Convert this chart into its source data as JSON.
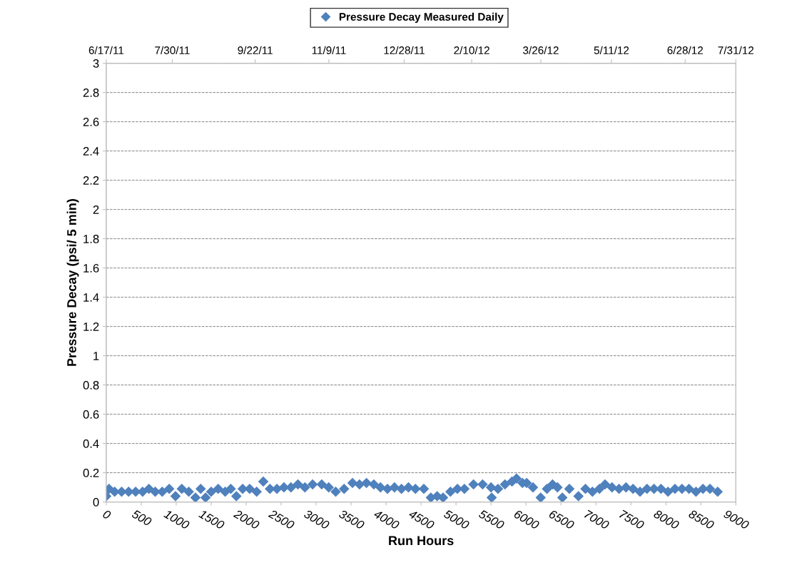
{
  "chart_data": {
    "type": "scatter",
    "xlabel": "Run Hours",
    "ylabel": "Pressure Decay (psi/ 5 min)",
    "xlim": [
      0,
      9000
    ],
    "xticks": [
      0,
      500,
      1000,
      1500,
      2000,
      2500,
      3000,
      3500,
      4000,
      4500,
      5000,
      5500,
      6000,
      6500,
      7000,
      7500,
      8000,
      8500,
      9000
    ],
    "ylim": [
      0,
      3
    ],
    "yticks": [
      0,
      0.2,
      0.4,
      0.6,
      0.8,
      1,
      1.2,
      1.4,
      1.6,
      1.8,
      2,
      2.2,
      2.4,
      2.6,
      2.8,
      3
    ],
    "x2lim": [
      "2011-06-17",
      "2012-07-31"
    ],
    "x2ticks": [
      {
        "value": "2011-06-17",
        "label": "6/17/11"
      },
      {
        "value": "2011-07-30",
        "label": "7/30/11"
      },
      {
        "value": "2011-09-22",
        "label": "9/22/11"
      },
      {
        "value": "2011-11-09",
        "label": "11/9/11"
      },
      {
        "value": "2011-12-28",
        "label": "12/28/11"
      },
      {
        "value": "2012-02-10",
        "label": "2/10/12"
      },
      {
        "value": "2012-03-26",
        "label": "3/26/12"
      },
      {
        "value": "2012-05-11",
        "label": "5/11/12"
      },
      {
        "value": "2012-06-28",
        "label": "6/28/12"
      },
      {
        "value": "2012-07-31",
        "label": "7/31/12"
      }
    ],
    "grid": "y",
    "legend": "top",
    "marker": "diamond",
    "series": [
      {
        "name": "Pressure Decay Measured Daily",
        "color": "#4f81bd",
        "x": [
          0,
          40,
          120,
          220,
          320,
          420,
          520,
          610,
          700,
          800,
          900,
          990,
          1080,
          1180,
          1275,
          1350,
          1420,
          1500,
          1600,
          1700,
          1780,
          1860,
          1950,
          2050,
          2150,
          2245,
          2340,
          2440,
          2540,
          2640,
          2740,
          2840,
          2950,
          3080,
          3180,
          3280,
          3400,
          3520,
          3620,
          3720,
          3825,
          3920,
          4020,
          4120,
          4220,
          4320,
          4420,
          4540,
          4640,
          4730,
          4815,
          4920,
          5020,
          5120,
          5250,
          5380,
          5500,
          5510,
          5600,
          5700,
          5800,
          5865,
          5950,
          6010,
          6100,
          6210,
          6300,
          6380,
          6450,
          6520,
          6620,
          6750,
          6850,
          6950,
          7050,
          7130,
          7230,
          7330,
          7430,
          7530,
          7630,
          7730,
          7830,
          7930,
          8030,
          8130,
          8230,
          8330,
          8430,
          8530,
          8630,
          8740
        ],
        "values": [
          0.04,
          0.09,
          0.07,
          0.07,
          0.07,
          0.07,
          0.07,
          0.09,
          0.07,
          0.07,
          0.09,
          0.04,
          0.09,
          0.07,
          0.03,
          0.09,
          0.03,
          0.07,
          0.09,
          0.07,
          0.09,
          0.04,
          0.09,
          0.09,
          0.07,
          0.14,
          0.09,
          0.09,
          0.1,
          0.1,
          0.12,
          0.1,
          0.12,
          0.12,
          0.1,
          0.07,
          0.09,
          0.13,
          0.12,
          0.13,
          0.12,
          0.1,
          0.09,
          0.1,
          0.09,
          0.1,
          0.09,
          0.09,
          0.03,
          0.04,
          0.03,
          0.07,
          0.09,
          0.09,
          0.12,
          0.12,
          0.1,
          0.03,
          0.09,
          0.12,
          0.14,
          0.16,
          0.13,
          0.13,
          0.1,
          0.03,
          0.09,
          0.12,
          0.1,
          0.03,
          0.09,
          0.04,
          0.09,
          0.07,
          0.09,
          0.12,
          0.1,
          0.09,
          0.1,
          0.09,
          0.07,
          0.09,
          0.09,
          0.09,
          0.07,
          0.09,
          0.09,
          0.09,
          0.07,
          0.09,
          0.09,
          0.07
        ]
      }
    ]
  }
}
